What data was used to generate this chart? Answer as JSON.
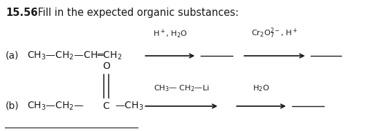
{
  "title_bold": "15.56",
  "title_text": " Fill in the expected organic substances:",
  "bg_color": "#ffffff",
  "fig_width": 5.52,
  "fig_height": 1.9,
  "dpi": 100,
  "label_a": "(a)",
  "label_b": "(b)",
  "text_color": "#1a1a1a",
  "font_size_title": 10.5,
  "font_size_chem": 10,
  "font_size_arrow": 8.2
}
